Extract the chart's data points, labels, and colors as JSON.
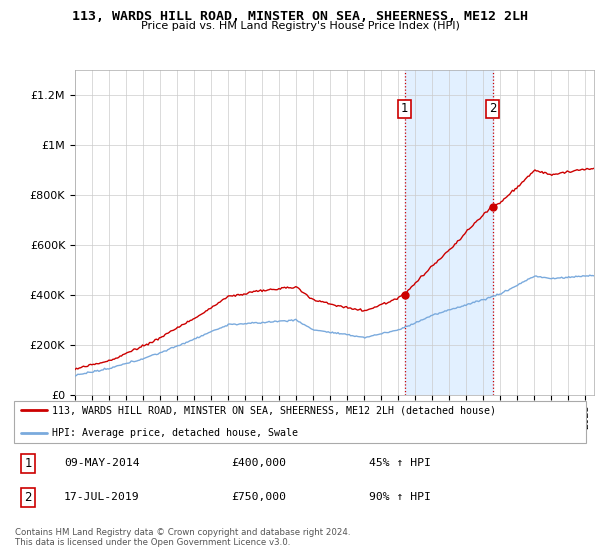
{
  "title": "113, WARDS HILL ROAD, MINSTER ON SEA, SHEERNESS, ME12 2LH",
  "subtitle": "Price paid vs. HM Land Registry's House Price Index (HPI)",
  "legend_line1": "113, WARDS HILL ROAD, MINSTER ON SEA, SHEERNESS, ME12 2LH (detached house)",
  "legend_line2": "HPI: Average price, detached house, Swale",
  "annotation1_date": "09-MAY-2014",
  "annotation1_price": "£400,000",
  "annotation1_hpi": "45% ↑ HPI",
  "annotation2_date": "17-JUL-2019",
  "annotation2_price": "£750,000",
  "annotation2_hpi": "90% ↑ HPI",
  "footer": "Contains HM Land Registry data © Crown copyright and database right 2024.\nThis data is licensed under the Open Government Licence v3.0.",
  "hpi_color": "#7aaadd",
  "price_color": "#cc0000",
  "shade_color": "#ddeeff",
  "annotation_box_color": "#cc0000",
  "ylim": [
    0,
    1300000
  ],
  "yticks": [
    0,
    200000,
    400000,
    600000,
    800000,
    1000000,
    1200000
  ],
  "ytick_labels": [
    "£0",
    "£200K",
    "£400K",
    "£600K",
    "£800K",
    "£1M",
    "£1.2M"
  ],
  "purchase1_year": 2014.37,
  "purchase1_price": 400000,
  "purchase2_year": 2019.54,
  "purchase2_price": 750000,
  "xmin": 1995,
  "xmax": 2025.5
}
